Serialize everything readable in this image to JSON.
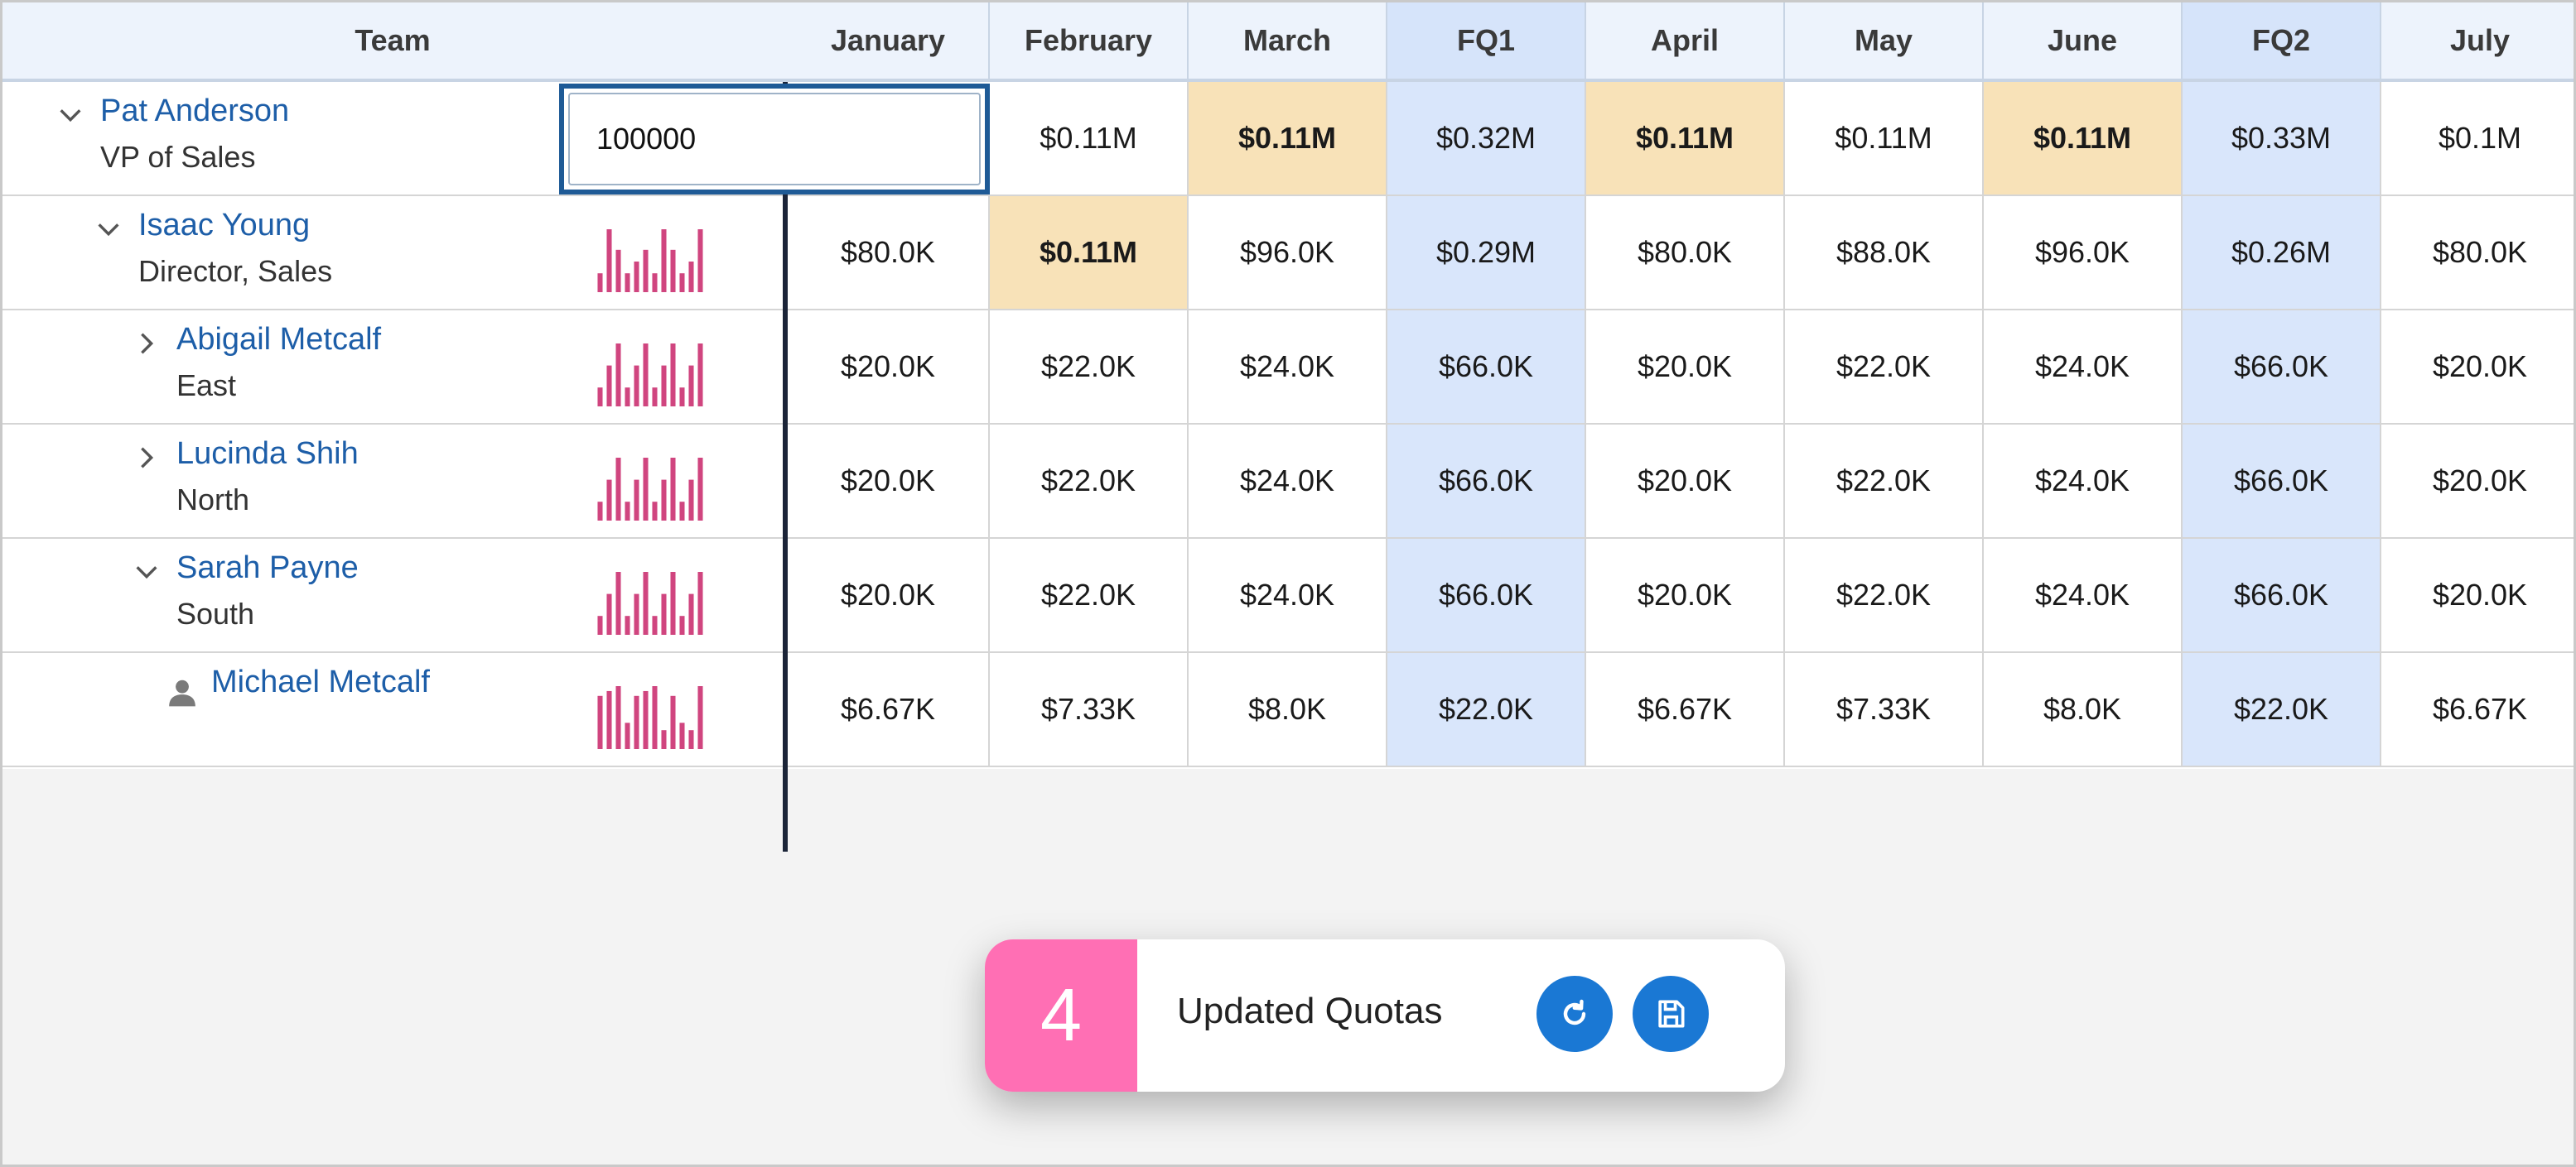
{
  "header": {
    "team_label": "Team",
    "columns": [
      "January",
      "February",
      "March",
      "FQ1",
      "April",
      "May",
      "June",
      "FQ2",
      "July"
    ]
  },
  "editor": {
    "value": "100000"
  },
  "rows": [
    {
      "name": "Pat Anderson",
      "role": "VP of Sales",
      "values": [
        "",
        "$0.11M",
        "$0.11M",
        "$0.32M",
        "$0.11M",
        "$0.11M",
        "$0.11M",
        "$0.33M",
        "$0.1M"
      ],
      "sparkline": []
    },
    {
      "name": "Isaac Young",
      "role": "Director, Sales",
      "values": [
        "$80.0K",
        "$0.11M",
        "$96.0K",
        "$0.29M",
        "$80.0K",
        "$88.0K",
        "$96.0K",
        "$0.26M",
        "$80.0K"
      ],
      "sparkline": [
        80,
        110,
        96,
        80,
        88,
        96,
        80,
        110,
        96,
        80,
        88,
        110
      ]
    },
    {
      "name": "Abigail Metcalf",
      "role": "East",
      "values": [
        "$20.0K",
        "$22.0K",
        "$24.0K",
        "$66.0K",
        "$20.0K",
        "$22.0K",
        "$24.0K",
        "$66.0K",
        "$20.0K"
      ],
      "sparkline": [
        20,
        22,
        24,
        20,
        22,
        24,
        20,
        22,
        24,
        20,
        22,
        24
      ]
    },
    {
      "name": "Lucinda Shih",
      "role": "North",
      "values": [
        "$20.0K",
        "$22.0K",
        "$24.0K",
        "$66.0K",
        "$20.0K",
        "$22.0K",
        "$24.0K",
        "$66.0K",
        "$20.0K"
      ],
      "sparkline": [
        20,
        22,
        24,
        20,
        22,
        24,
        20,
        22,
        24,
        20,
        22,
        24
      ]
    },
    {
      "name": "Sarah Payne",
      "role": "South",
      "values": [
        "$20.0K",
        "$22.0K",
        "$24.0K",
        "$66.0K",
        "$20.0K",
        "$22.0K",
        "$24.0K",
        "$66.0K",
        "$20.0K"
      ],
      "sparkline": [
        20,
        22,
        24,
        20,
        22,
        24,
        20,
        22,
        24,
        20,
        22,
        24
      ]
    },
    {
      "name": "Michael Metcalf",
      "role": "",
      "values": [
        "$6.67K",
        "$7.33K",
        "$8.0K",
        "$22.0K",
        "$6.67K",
        "$7.33K",
        "$8.0K",
        "$22.0K",
        "$6.67K"
      ],
      "sparkline": [
        6.67,
        7.33,
        8.0,
        3.0,
        6.67,
        7.33,
        8.0,
        2.0,
        6.67,
        3.0,
        2.0,
        8.0
      ]
    }
  ],
  "toast": {
    "count": "4",
    "message": "Updated Quotas"
  },
  "colors": {
    "link": "#1d5ea8",
    "quarter_bg": "#d9e6fb",
    "highlight_bg": "#f8e2b8",
    "spark": "#d0457f",
    "toast_accent": "#ff6fb4",
    "button": "#1a78d4"
  }
}
